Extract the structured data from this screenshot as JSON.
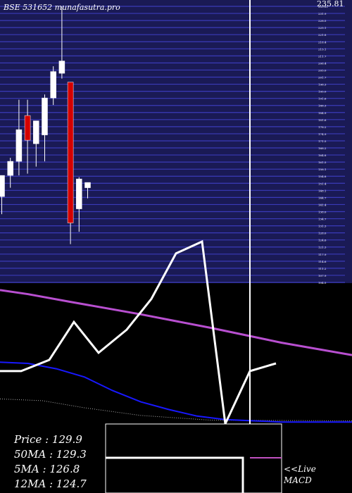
{
  "header": {
    "title": "BSE 531652  munafasutra.pro"
  },
  "top_right_label": "235.81",
  "stats": [
    {
      "label": "Price",
      "value": "129.9"
    },
    {
      "label": "50MA",
      "value": "129.3"
    },
    {
      "label": "5MA",
      "value": "126.8"
    },
    {
      "label": "12MA",
      "value": "124.7"
    }
  ],
  "macd": {
    "line1": "<<Live",
    "line2": "MACD"
  },
  "colors": {
    "price_bg": "#1a1a55",
    "gridline": "#3a3ab8",
    "bull": "#ffffff",
    "bear": "#d40000",
    "ma_purple": "#b84fd0",
    "ma_blue": "#1818ff",
    "white_line": "#ffffff",
    "macd_signal": "#c050c0"
  },
  "chart_data": {
    "type": "candlestick",
    "price_ticks": [
      "235.81",
      "231.9",
      "228.5",
      "225.1",
      "221.8",
      "218.4",
      "215.1",
      "211.7",
      "208.4",
      "205.0",
      "201.7",
      "198.3",
      "195.0",
      "191.6",
      "188.3",
      "184.9",
      "181.6",
      "178.2",
      "174.9",
      "171.5",
      "168.2",
      "164.8",
      "161.5",
      "158.1",
      "154.8",
      "151.4",
      "148.1",
      "144.7",
      "141.4",
      "138.0",
      "134.7",
      "131.3",
      "128.0",
      "124.6",
      "121.3",
      "117.9",
      "114.6",
      "111.2",
      "107.9",
      "104.5"
    ],
    "candles": [
      {
        "open": 128.0,
        "high": 140.0,
        "low": 118.0,
        "close": 140.0
      },
      {
        "open": 140.0,
        "high": 150.0,
        "low": 133.0,
        "close": 148.0
      },
      {
        "open": 148.0,
        "high": 183.0,
        "low": 140.0,
        "close": 166.0
      },
      {
        "open": 174.0,
        "high": 183.0,
        "low": 141.0,
        "close": 160.0
      },
      {
        "open": 158.0,
        "high": 171.0,
        "low": 145.0,
        "close": 171.0
      },
      {
        "open": 163.0,
        "high": 186.0,
        "low": 148.0,
        "close": 184.0
      },
      {
        "open": 184.0,
        "high": 202.0,
        "low": 180.0,
        "close": 199.0
      },
      {
        "open": 198.0,
        "high": 236.0,
        "low": 195.0,
        "close": 205.0
      },
      {
        "open": 193.0,
        "high": 193.0,
        "low": 101.0,
        "close": 113.0
      },
      {
        "open": 121.0,
        "high": 139.0,
        "low": 108.0,
        "close": 138.0
      },
      {
        "open": 133.0,
        "high": 136.0,
        "low": 127.0,
        "close": 136.0
      }
    ],
    "ma_purple": [
      [
        0,
        148.4
      ],
      [
        40,
        147.7
      ],
      [
        100,
        146.4
      ],
      [
        200,
        144.3
      ],
      [
        300,
        142.0
      ],
      [
        400,
        139.5
      ],
      [
        500,
        137.4
      ]
    ],
    "ma_blue": [
      [
        0,
        136.2
      ],
      [
        40,
        136.0
      ],
      [
        80,
        135.1
      ],
      [
        120,
        133.7
      ],
      [
        160,
        131.4
      ],
      [
        200,
        129.5
      ],
      [
        240,
        128.2
      ],
      [
        280,
        127.1
      ],
      [
        320,
        126.5
      ],
      [
        360,
        126.3
      ],
      [
        400,
        126.1
      ],
      [
        440,
        126.1
      ],
      [
        500,
        126.1
      ]
    ],
    "ma_white": [
      [
        0,
        134.7
      ],
      [
        30,
        134.7
      ],
      [
        70,
        136.6
      ],
      [
        105,
        143.0
      ],
      [
        140,
        137.8
      ],
      [
        180,
        141.7
      ],
      [
        215,
        146.9
      ],
      [
        250,
        154.6
      ],
      [
        287,
        156.6
      ],
      [
        320,
        125.8
      ],
      [
        355,
        134.7
      ],
      [
        392,
        136.0
      ]
    ],
    "ma_dotted": [
      [
        0,
        130.0
      ],
      [
        60,
        129.7
      ],
      [
        120,
        128.5
      ],
      [
        200,
        127.2
      ],
      [
        300,
        126.4
      ],
      [
        500,
        126.3
      ]
    ],
    "vline_x": 355,
    "macd_box": {
      "segments": [
        [
          [
            150,
            650
          ],
          [
            345,
            650
          ],
          [
            345,
            700
          ]
        ],
        [
          [
            355,
            650
          ],
          [
            400,
            650
          ]
        ]
      ]
    }
  }
}
